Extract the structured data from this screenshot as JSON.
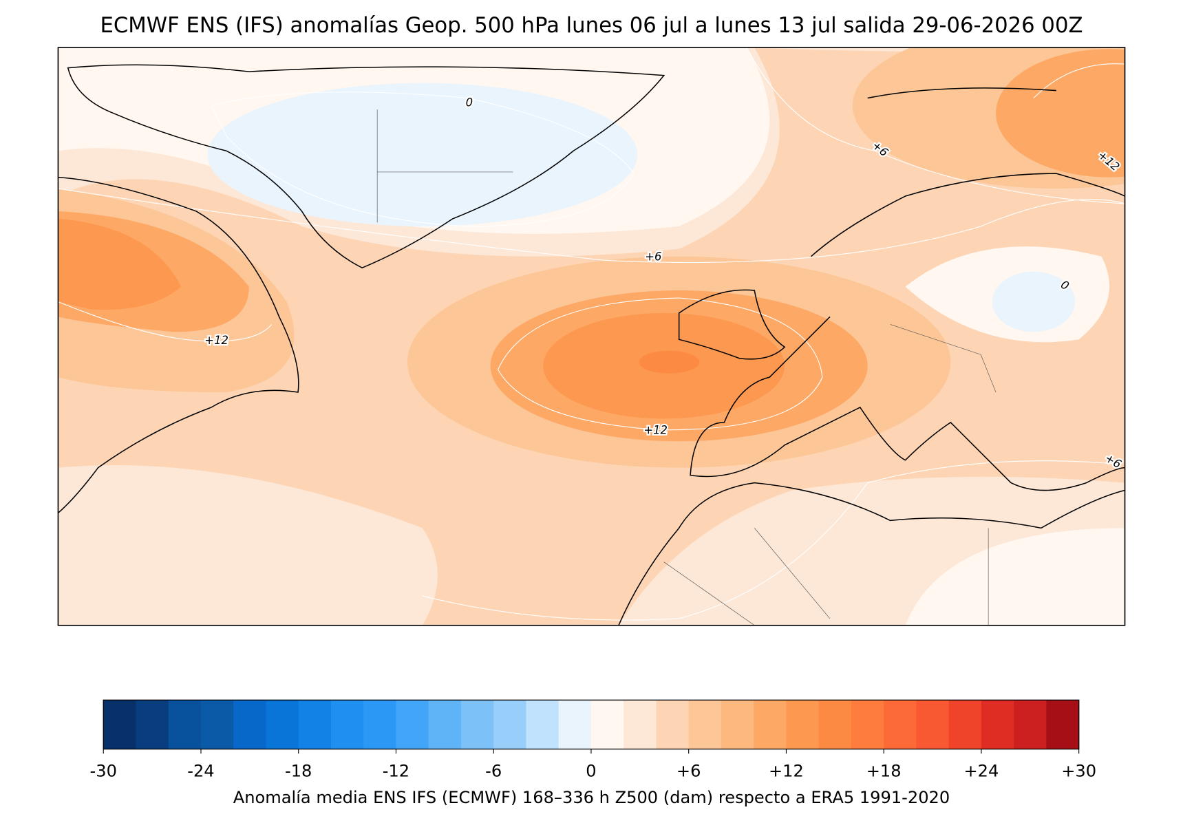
{
  "title": "ECMWF ENS (IFS) anomalías Geop. 500 hPa lunes 06 jul a lunes 13 jul salida 29-06-2026 00Z",
  "contour_labels": [
    "0",
    "+6",
    "+12",
    "+6",
    "+12",
    "+12",
    "0",
    "+6"
  ],
  "colorbar": {
    "label": "Anomalía media ENS IFS (ECMWF) 168–336 h Z500 (dam) respecto a ERA5 1991-2020",
    "lim": [
      -30,
      30
    ],
    "ticks": [
      -30,
      -24,
      -18,
      -12,
      -6,
      0,
      {
        "value": 6,
        "label": "+6"
      },
      {
        "value": 12,
        "label": "+12"
      },
      {
        "value": 18,
        "label": "+18"
      },
      {
        "value": 24,
        "label": "+24"
      },
      {
        "value": 30,
        "label": "+30"
      }
    ],
    "colors": [
      "#08306b",
      "#083d7f",
      "#08519c",
      "#0a5aa8",
      "#0868c9",
      "#0a75d8",
      "#1282e6",
      "#1f8ff0",
      "#2b98f5",
      "#42a5f8",
      "#5fb4f8",
      "#7cc2f9",
      "#98cffa",
      "#c1e2fc",
      "#e9f4fd",
      "#fff7f0",
      "#fde7d6",
      "#fdd5b5",
      "#fdc697",
      "#fdb87e",
      "#fda865",
      "#fd9850",
      "#fd8a42",
      "#fd7c3e",
      "#fc6a38",
      "#f85933",
      "#ef4429",
      "#df2d24",
      "#cc1f1f",
      "#a50f15"
    ]
  }
}
